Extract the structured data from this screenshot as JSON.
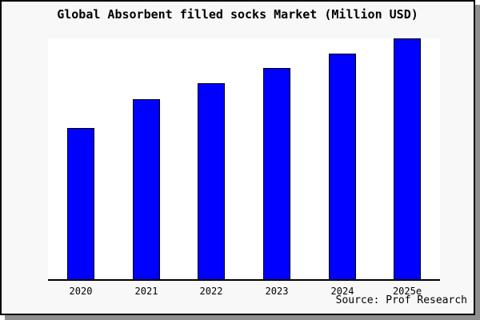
{
  "title": "Global Absorbent filled socks Market (Million USD)",
  "source_note": "Source: Prof Research",
  "colors": {
    "figure_background": "#ffffff",
    "frame_background": "#f8f8f8",
    "frame_border": "#000000",
    "frame_shadow": "#8f8f8f",
    "plot_background": "#ffffff",
    "bar_fill": "#0000ff",
    "bar_border": "#000000",
    "axis_line": "#000000",
    "text": "#000000"
  },
  "chart_data": {
    "type": "bar",
    "title": "Global Absorbent filled socks Market (Million USD)",
    "categories": [
      "2020",
      "2021",
      "2022",
      "2023",
      "2024",
      "2025e"
    ],
    "values": [
      62.8,
      74.8,
      81.5,
      87.7,
      93.7,
      100
    ],
    "values_note": "y-axis has no tick labels; values are relative bar heights with tallest bar (2025e) = 100",
    "xlabel": "",
    "ylabel": "",
    "ylim": [
      0,
      100
    ],
    "grid": false,
    "legend": false,
    "y_axis_visible": false,
    "bar_color": "#0000ff",
    "source": "Source: Prof Research"
  }
}
